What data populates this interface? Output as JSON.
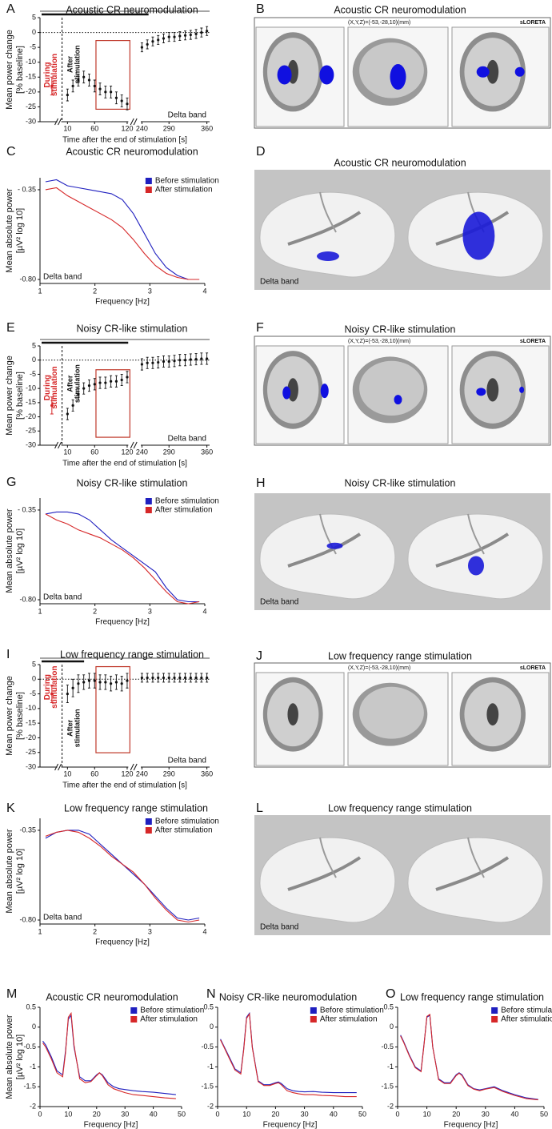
{
  "chart_data": [
    {
      "type": "errorbar",
      "label": "A",
      "title": "Acoustic CR neuromodulation",
      "ylabel": [
        "Mean power change",
        "[% baseline]"
      ],
      "xlabel": "Time after the end of stimulation [s]",
      "annotation": "Delta band",
      "during_label": [
        "During",
        "stimulation"
      ],
      "after_label": [
        "After",
        "stimulation"
      ],
      "during": {
        "value": -18,
        "error": 3
      },
      "during_color": "#d62728",
      "color": "#111111",
      "x": [
        10,
        20,
        30,
        40,
        50,
        60,
        70,
        80,
        90,
        100,
        110,
        120,
        240,
        250,
        260,
        270,
        280,
        290,
        300,
        310,
        320,
        330,
        340,
        350,
        360
      ],
      "values": [
        -21,
        -18,
        -16,
        -15,
        -16,
        -18,
        -19,
        -20,
        -20,
        -22,
        -23,
        -24,
        -5,
        -4,
        -3,
        -2.5,
        -2,
        -1.5,
        -1.5,
        -1.2,
        -1,
        -0.8,
        -0.5,
        0,
        0.5
      ],
      "errors": [
        2,
        2,
        2,
        2,
        2,
        2,
        2,
        2,
        2,
        2,
        2,
        2,
        1.5,
        1.5,
        1.5,
        1.5,
        1.5,
        1.5,
        1.5,
        1.5,
        1.5,
        1.5,
        1.5,
        1.5,
        1.5
      ],
      "xlim": [
        0,
        365
      ],
      "xbreak": [
        125,
        235
      ],
      "xticks": [
        10,
        60,
        120,
        240,
        290,
        360
      ],
      "ylim": [
        -30,
        5
      ],
      "yticks": [
        -30,
        -25,
        -20,
        -15,
        -10,
        -5,
        0,
        5
      ]
    },
    {
      "type": "line",
      "label": "C",
      "title": "Acoustic CR neuromodulation",
      "ylabel": [
        "Mean absolute power",
        "[µV² log 10]"
      ],
      "xlabel": "Frequency [Hz]",
      "annotation": "Delta band",
      "legend": "upper right",
      "x": [
        1.1,
        1.3,
        1.5,
        1.7,
        1.9,
        2.1,
        2.3,
        2.5,
        2.7,
        2.9,
        3.1,
        3.3,
        3.5,
        3.7,
        3.9
      ],
      "series": [
        {
          "name": "Before stimulation",
          "color": "#1f1fbf",
          "values": [
            -0.31,
            -0.3,
            -0.33,
            -0.34,
            -0.35,
            -0.36,
            -0.37,
            -0.4,
            -0.47,
            -0.57,
            -0.67,
            -0.74,
            -0.78,
            -0.8,
            -0.8
          ]
        },
        {
          "name": "After stimulation",
          "color": "#d62728",
          "values": [
            -0.35,
            -0.34,
            -0.38,
            -0.41,
            -0.44,
            -0.47,
            -0.5,
            -0.54,
            -0.6,
            -0.67,
            -0.73,
            -0.77,
            -0.79,
            -0.8,
            -0.8
          ]
        }
      ],
      "xlim": [
        1,
        4
      ],
      "xticks": [
        1,
        2,
        3,
        4
      ],
      "ylim": [
        -0.82,
        -0.29
      ],
      "yticks": [
        {
          "value": -0.35,
          "label": "- 0.35"
        },
        {
          "value": -0.8,
          "label": "-0.80"
        }
      ]
    },
    {
      "type": "errorbar",
      "label": "E",
      "title": "Noisy CR-like stimulation",
      "ylabel": [
        "Mean power change",
        "[% baseline]"
      ],
      "xlabel": "Time after the end of stimulation [s]",
      "annotation": "Delta band",
      "during_label": [
        "During",
        "stimulation"
      ],
      "after_label": [
        "After",
        "stimulation"
      ],
      "during": {
        "value": -16,
        "error": 3
      },
      "during_color": "#d62728",
      "color": "#111111",
      "x": [
        10,
        20,
        30,
        40,
        50,
        60,
        70,
        80,
        90,
        100,
        110,
        120,
        240,
        250,
        260,
        270,
        280,
        290,
        300,
        310,
        320,
        330,
        340,
        350,
        360
      ],
      "values": [
        -19,
        -16,
        -12,
        -10,
        -9,
        -8.5,
        -8,
        -8,
        -7.5,
        -7.5,
        -7,
        -6,
        -1.5,
        -1,
        -1,
        -0.8,
        -0.5,
        -0.5,
        -0.3,
        0,
        0,
        0.2,
        0.3,
        0.5,
        0.5
      ],
      "errors": [
        2,
        2,
        2,
        2,
        2,
        2,
        2,
        2,
        2,
        2,
        2,
        2,
        2,
        2,
        2,
        2,
        2,
        2,
        2,
        2,
        2,
        2,
        2,
        2,
        2
      ],
      "xlim": [
        0,
        365
      ],
      "xbreak": [
        125,
        235
      ],
      "xticks": [
        10,
        60,
        120,
        240,
        290,
        360
      ],
      "ylim": [
        -30,
        5
      ],
      "yticks": [
        -30,
        -25,
        -20,
        -15,
        -10,
        -5,
        0,
        5
      ]
    },
    {
      "type": "line",
      "label": "G",
      "title": "Noisy CR-like stimulation",
      "ylabel": [
        "Mean absolute power",
        "[µV² log 10]"
      ],
      "xlabel": "Frequency [Hz]",
      "annotation": "Delta band",
      "legend": "upper right",
      "x": [
        1.1,
        1.3,
        1.5,
        1.7,
        1.9,
        2.1,
        2.3,
        2.5,
        2.7,
        2.9,
        3.1,
        3.3,
        3.5,
        3.7,
        3.9
      ],
      "series": [
        {
          "name": "Before stimulation",
          "color": "#1f1fbf",
          "values": [
            -0.37,
            -0.36,
            -0.36,
            -0.37,
            -0.4,
            -0.45,
            -0.5,
            -0.54,
            -0.58,
            -0.62,
            -0.66,
            -0.74,
            -0.8,
            -0.81,
            -0.81
          ]
        },
        {
          "name": "After stimulation",
          "color": "#d62728",
          "values": [
            -0.37,
            -0.4,
            -0.42,
            -0.45,
            -0.47,
            -0.49,
            -0.52,
            -0.55,
            -0.59,
            -0.64,
            -0.7,
            -0.76,
            -0.81,
            -0.82,
            -0.81
          ]
        }
      ],
      "xlim": [
        1,
        4
      ],
      "xticks": [
        1,
        2,
        3,
        4
      ],
      "ylim": [
        -0.82,
        -0.29
      ],
      "yticks": [
        {
          "value": -0.35,
          "label": "- 0.35"
        },
        {
          "value": -0.8,
          "label": "-0.80"
        }
      ]
    },
    {
      "type": "errorbar",
      "label": "I",
      "title": "Low frequency range stimulation",
      "ylabel": [
        "Mean power change",
        "[% baseline]"
      ],
      "xlabel": "Time after the end of stimulation [s]",
      "annotation": "Delta band",
      "during_label": [
        "During",
        "stimulation"
      ],
      "after_label": [
        "After",
        "stimulation"
      ],
      "during": {
        "value": -5,
        "error": 3
      },
      "during_color": "#d62728",
      "color": "#111111",
      "x": [
        10,
        20,
        30,
        40,
        50,
        60,
        70,
        80,
        90,
        100,
        110,
        120,
        240,
        250,
        260,
        270,
        280,
        290,
        300,
        310,
        320,
        330,
        340,
        350,
        360
      ],
      "values": [
        -5,
        -3,
        -1.5,
        -1,
        -0.5,
        -0.5,
        -1,
        -1,
        -1.5,
        -1,
        -1.5,
        -0.5,
        0.5,
        0.5,
        0.5,
        0.5,
        0.5,
        0.5,
        0.5,
        0.5,
        0.5,
        0.5,
        0.5,
        0.5,
        0.5
      ],
      "errors": [
        3,
        3,
        3,
        2.5,
        2.5,
        2.5,
        2.5,
        2.5,
        2.5,
        2.5,
        2.5,
        2.5,
        1.5,
        1.5,
        1.5,
        1.5,
        1.5,
        1.5,
        1.5,
        1.5,
        1.5,
        1.5,
        1.5,
        1.5,
        1.5
      ],
      "xlim": [
        0,
        365
      ],
      "xbreak": [
        125,
        235
      ],
      "xticks": [
        10,
        60,
        120,
        240,
        290,
        360
      ],
      "ylim": [
        -30,
        5
      ],
      "yticks": [
        -30,
        -25,
        -20,
        -15,
        -10,
        -5,
        0,
        5
      ]
    },
    {
      "type": "line",
      "label": "K",
      "title": "Low frequency range stimulation",
      "ylabel": [
        "Mean absolute power",
        "[µV² log 10]"
      ],
      "xlabel": "Frequency [Hz]",
      "annotation": "Delta band",
      "legend": "upper right",
      "x": [
        1.1,
        1.3,
        1.5,
        1.7,
        1.9,
        2.1,
        2.3,
        2.5,
        2.7,
        2.9,
        3.1,
        3.3,
        3.5,
        3.7,
        3.9
      ],
      "series": [
        {
          "name": "Before stimulation",
          "color": "#1f1fbf",
          "values": [
            -0.39,
            -0.36,
            -0.35,
            -0.35,
            -0.37,
            -0.42,
            -0.47,
            -0.52,
            -0.57,
            -0.62,
            -0.68,
            -0.74,
            -0.79,
            -0.8,
            -0.79
          ]
        },
        {
          "name": "After stimulation",
          "color": "#d62728",
          "values": [
            -0.38,
            -0.36,
            -0.35,
            -0.36,
            -0.39,
            -0.43,
            -0.48,
            -0.52,
            -0.56,
            -0.62,
            -0.69,
            -0.75,
            -0.8,
            -0.81,
            -0.8
          ]
        }
      ],
      "xlim": [
        1,
        4
      ],
      "xticks": [
        1,
        2,
        3,
        4
      ],
      "ylim": [
        -0.82,
        -0.29
      ],
      "yticks": [
        {
          "value": -0.35,
          "label": "-0.35"
        },
        {
          "value": -0.8,
          "label": "-0.80"
        }
      ]
    },
    {
      "type": "line",
      "label": "M",
      "title": "Acoustic CR neuromodulation",
      "ylabel": [
        "Mean absolute power",
        "[µV² log 10]"
      ],
      "xlabel": "Frequency [Hz]",
      "legend": "upper right",
      "x": [
        1,
        2,
        4,
        6,
        8,
        9,
        10,
        11,
        12,
        14,
        16,
        18,
        20,
        21,
        22,
        24,
        26,
        28,
        30,
        33,
        36,
        40,
        44,
        48
      ],
      "series": [
        {
          "name": "Before stimulation",
          "color": "#1f1fbf",
          "values": [
            -0.35,
            -0.45,
            -0.75,
            -1.1,
            -1.2,
            -0.6,
            0.2,
            0.3,
            -0.5,
            -1.25,
            -1.35,
            -1.35,
            -1.2,
            -1.15,
            -1.2,
            -1.4,
            -1.5,
            -1.55,
            -1.57,
            -1.6,
            -1.62,
            -1.64,
            -1.67,
            -1.7
          ]
        },
        {
          "name": "After stimulation",
          "color": "#d62728",
          "values": [
            -0.4,
            -0.5,
            -0.8,
            -1.15,
            -1.25,
            -0.65,
            0.25,
            0.35,
            -0.45,
            -1.3,
            -1.4,
            -1.37,
            -1.22,
            -1.15,
            -1.22,
            -1.45,
            -1.55,
            -1.6,
            -1.65,
            -1.7,
            -1.72,
            -1.75,
            -1.78,
            -1.8
          ]
        }
      ],
      "xlim": [
        0,
        50
      ],
      "xticks": [
        0,
        10,
        20,
        30,
        40,
        50
      ],
      "ylim": [
        -2,
        0.5
      ],
      "yticks": [
        -2,
        -1.5,
        -1,
        -0.5,
        0,
        0.5
      ]
    },
    {
      "type": "line",
      "label": "N",
      "title": "Noisy CR-like neuromodulation",
      "xlabel": "Frequency [Hz]",
      "legend": "upper right",
      "x": [
        1,
        2,
        4,
        6,
        8,
        9,
        10,
        11,
        12,
        14,
        16,
        18,
        20,
        21,
        22,
        24,
        26,
        28,
        30,
        33,
        36,
        40,
        44,
        48
      ],
      "series": [
        {
          "name": "Before stimulation",
          "color": "#1f1fbf",
          "values": [
            -0.3,
            -0.45,
            -0.75,
            -1.05,
            -1.15,
            -0.55,
            0.25,
            0.35,
            -0.5,
            -1.35,
            -1.45,
            -1.45,
            -1.4,
            -1.38,
            -1.42,
            -1.55,
            -1.6,
            -1.62,
            -1.63,
            -1.62,
            -1.64,
            -1.65,
            -1.65,
            -1.65
          ]
        },
        {
          "name": "After stimulation",
          "color": "#d62728",
          "values": [
            -0.32,
            -0.47,
            -0.78,
            -1.08,
            -1.18,
            -0.58,
            0.22,
            0.33,
            -0.52,
            -1.37,
            -1.47,
            -1.47,
            -1.42,
            -1.4,
            -1.45,
            -1.6,
            -1.65,
            -1.68,
            -1.7,
            -1.7,
            -1.72,
            -1.73,
            -1.75,
            -1.75
          ]
        }
      ],
      "xlim": [
        0,
        50
      ],
      "xticks": [
        0,
        10,
        20,
        30,
        40,
        50
      ],
      "ylim": [
        -2,
        0.5
      ],
      "yticks": [
        -2,
        -1.5,
        -1,
        -0.5,
        0,
        0.5
      ]
    },
    {
      "type": "line",
      "label": "O",
      "title": "Low frequency range stimulation",
      "xlabel": "Frequency [Hz]",
      "legend": "upper right",
      "x": [
        1,
        2,
        4,
        6,
        8,
        9,
        10,
        11,
        12,
        14,
        16,
        18,
        20,
        21,
        22,
        24,
        26,
        28,
        30,
        33,
        36,
        40,
        44,
        48
      ],
      "series": [
        {
          "name": "Before stimulation",
          "color": "#1f1fbf",
          "values": [
            -0.2,
            -0.35,
            -0.7,
            -1.0,
            -1.1,
            -0.45,
            0.25,
            0.3,
            -0.5,
            -1.3,
            -1.4,
            -1.4,
            -1.2,
            -1.15,
            -1.2,
            -1.45,
            -1.55,
            -1.58,
            -1.55,
            -1.5,
            -1.6,
            -1.7,
            -1.78,
            -1.82
          ]
        },
        {
          "name": "After stimulation",
          "color": "#d62728",
          "values": [
            -0.22,
            -0.37,
            -0.72,
            -1.02,
            -1.12,
            -0.47,
            0.27,
            0.32,
            -0.5,
            -1.32,
            -1.42,
            -1.42,
            -1.22,
            -1.16,
            -1.22,
            -1.47,
            -1.56,
            -1.6,
            -1.56,
            -1.52,
            -1.62,
            -1.72,
            -1.8,
            -1.83
          ]
        }
      ],
      "xlim": [
        0,
        50
      ],
      "xticks": [
        0,
        10,
        20,
        30,
        40,
        50
      ],
      "ylim": [
        -2,
        0.5
      ],
      "yticks": [
        -2,
        -1.5,
        -1,
        -0.5,
        0,
        0.5
      ]
    }
  ],
  "image_panels": [
    {
      "type": "slices",
      "label": "B",
      "title": "Acoustic CR neuromodulation",
      "coords": "(X,Y,Z)=(-53,-28,10)(mm)",
      "software": "sLORETA"
    },
    {
      "type": "surface",
      "label": "D",
      "title": "Acoustic CR neuromodulation",
      "annotation": "Delta band"
    },
    {
      "type": "slices",
      "label": "F",
      "title": "Noisy CR-like stimulation",
      "coords": "(X,Y,Z)=(-53,-28,10)(mm)",
      "software": "sLORETA"
    },
    {
      "type": "surface",
      "label": "H",
      "title": "Noisy CR-like stimulation",
      "annotation": "Delta band"
    },
    {
      "type": "slices",
      "label": "J",
      "title": "Low frequency range stimulation",
      "coords": "(X,Y,Z)=(-53,-28,10)(mm)",
      "software": "sLORETA"
    },
    {
      "type": "surface",
      "label": "L",
      "title": "Low frequency range stimulation",
      "annotation": "Delta band"
    }
  ]
}
